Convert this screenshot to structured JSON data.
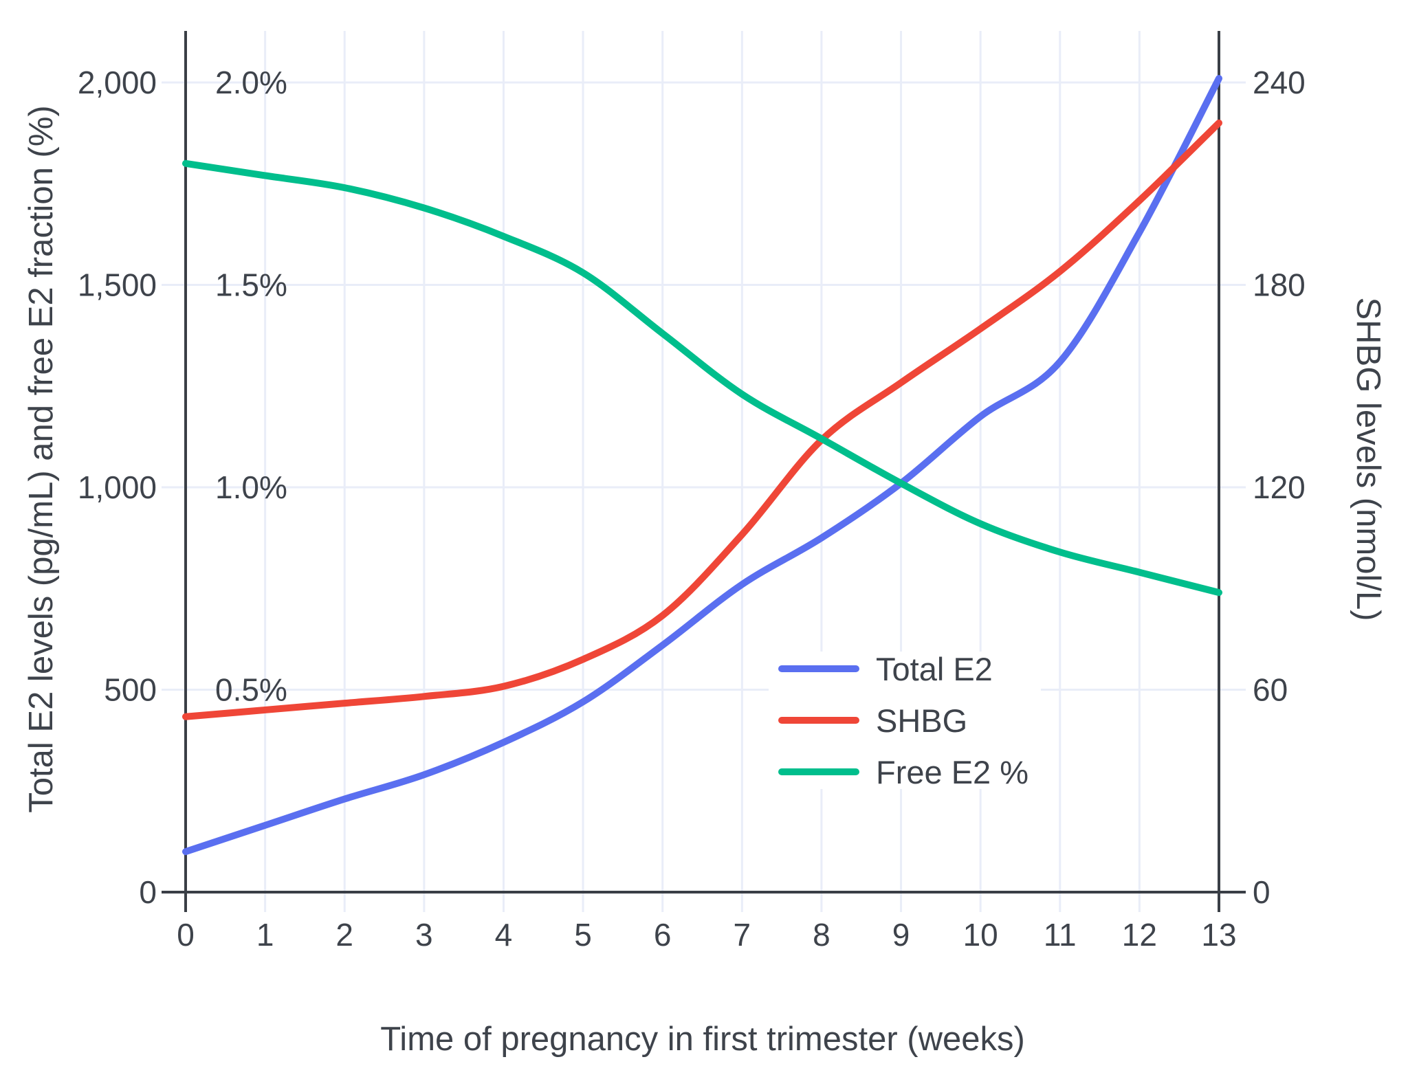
{
  "chart_data": {
    "type": "line",
    "title": "",
    "xlabel": "Time of pregnancy in first trimester (weeks)",
    "ylabel_left": "Total E2 levels (pg/mL) and free E2 fraction (%)",
    "ylabel_right": "SHBG levels (nmol/L)",
    "x": [
      0,
      1,
      2,
      3,
      4,
      5,
      6,
      7,
      8,
      9,
      10,
      11,
      12,
      13
    ],
    "xlim": [
      0,
      13
    ],
    "ylim_left": [
      0,
      2000
    ],
    "ylim_left_pct": [
      0,
      2.0
    ],
    "ylim_right": [
      0,
      240
    ],
    "grid": true,
    "legend_position": "center-right",
    "x_ticks": [
      {
        "value": 0,
        "label": "0"
      },
      {
        "value": 1,
        "label": "1"
      },
      {
        "value": 2,
        "label": "2"
      },
      {
        "value": 3,
        "label": "3"
      },
      {
        "value": 4,
        "label": "4"
      },
      {
        "value": 5,
        "label": "5"
      },
      {
        "value": 6,
        "label": "6"
      },
      {
        "value": 7,
        "label": "7"
      },
      {
        "value": 8,
        "label": "8"
      },
      {
        "value": 9,
        "label": "9"
      },
      {
        "value": 10,
        "label": "10"
      },
      {
        "value": 11,
        "label": "11"
      },
      {
        "value": 12,
        "label": "12"
      },
      {
        "value": 13,
        "label": "13"
      }
    ],
    "y_left_ticks": [
      {
        "value": 0,
        "label": "0",
        "pct_label": ""
      },
      {
        "value": 500,
        "label": "500",
        "pct_label": "0.5%"
      },
      {
        "value": 1000,
        "label": "1,000",
        "pct_label": "1.0%"
      },
      {
        "value": 1500,
        "label": "1,500",
        "pct_label": "1.5%"
      },
      {
        "value": 2000,
        "label": "2,000",
        "pct_label": "2.0%"
      }
    ],
    "y_right_ticks": [
      {
        "value": 0,
        "label": "0"
      },
      {
        "value": 60,
        "label": "60"
      },
      {
        "value": 120,
        "label": "120"
      },
      {
        "value": 180,
        "label": "180"
      },
      {
        "value": 240,
        "label": "240"
      }
    ],
    "series": [
      {
        "name": "Total E2",
        "axis": "left",
        "unit": "pg/mL",
        "color": "#5a6ff0",
        "values": [
          100,
          165,
          230,
          290,
          370,
          470,
          610,
          760,
          875,
          1010,
          1175,
          1310,
          1630,
          2010
        ]
      },
      {
        "name": "SHBG",
        "axis": "right",
        "unit": "nmol/L",
        "color": "#ef4637",
        "values": [
          52,
          54,
          56,
          58,
          61,
          69,
          82,
          106,
          134,
          151,
          167,
          184,
          205,
          228
        ]
      },
      {
        "name": "Free E2 %",
        "axis": "left_pct",
        "unit": "%",
        "color": "#00be8c",
        "values": [
          1.8,
          1.77,
          1.74,
          1.69,
          1.62,
          1.53,
          1.38,
          1.23,
          1.12,
          1.01,
          0.91,
          0.84,
          0.79,
          0.74
        ]
      }
    ],
    "colors": {
      "grid": "#e9edf8",
      "axis": "#3a3f46",
      "text": "#3e434b",
      "background": "#ffffff"
    }
  }
}
